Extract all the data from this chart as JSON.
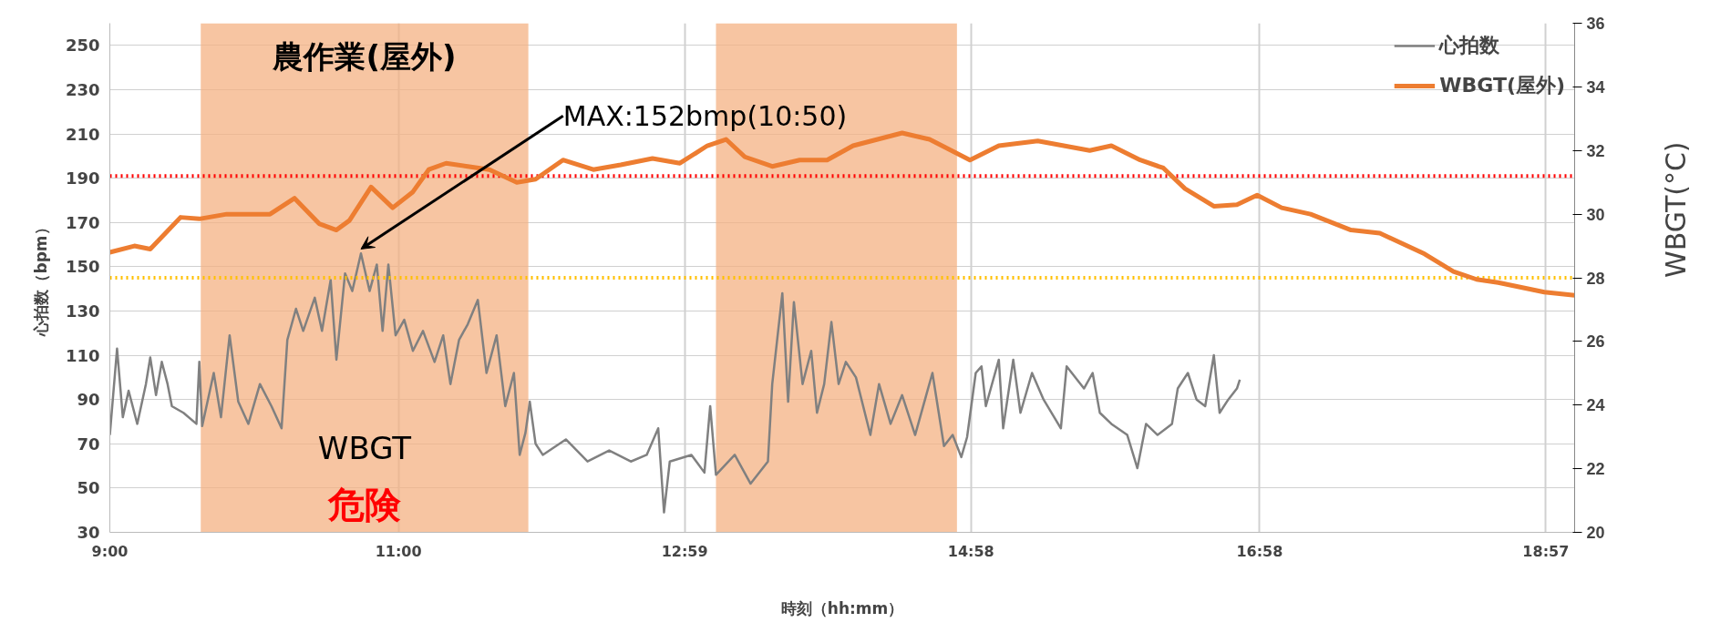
{
  "chart_data": {
    "type": "line",
    "xlabel": "時刻（hh:mm）",
    "ylabel": "心拍数（bpm）",
    "y2label": "WBGT(°C)",
    "xlim": [
      9,
      19.15
    ],
    "xticks": [
      {
        "value": 9,
        "label": "9:00"
      },
      {
        "value": 11,
        "label": "11:00"
      },
      {
        "value": 12.983,
        "label": "12:59"
      },
      {
        "value": 14.967,
        "label": "14:58"
      },
      {
        "value": 16.967,
        "label": "16:58"
      },
      {
        "value": 18.95,
        "label": "18:57"
      }
    ],
    "ylim": [
      30,
      260
    ],
    "yticks": [
      30,
      50,
      70,
      90,
      110,
      130,
      150,
      170,
      190,
      210,
      230,
      250
    ],
    "y2lim": [
      20,
      36
    ],
    "y2ticks": [
      20,
      22,
      24,
      26,
      28,
      30,
      32,
      34,
      36
    ],
    "grid": true,
    "legend": "top right",
    "series": [
      {
        "name": "心拍数",
        "color": "#808080",
        "x": [
          9.0,
          9.05,
          9.09,
          9.13,
          9.19,
          9.25,
          9.28,
          9.32,
          9.36,
          9.4,
          9.43,
          9.51,
          9.6,
          9.62,
          9.64,
          9.72,
          9.77,
          9.83,
          9.89,
          9.96,
          10.04,
          10.12,
          10.19,
          10.23,
          10.29,
          10.34,
          10.42,
          10.47,
          10.53,
          10.57,
          10.63,
          10.68,
          10.74,
          10.8,
          10.85,
          10.89,
          10.93,
          10.98,
          11.04,
          11.1,
          11.17,
          11.25,
          11.31,
          11.36,
          11.42,
          11.48,
          11.55,
          11.61,
          11.68,
          11.74,
          11.8,
          11.84,
          11.88,
          11.91,
          11.95,
          12.0,
          12.16,
          12.31,
          12.46,
          12.61,
          12.72,
          12.8,
          12.84,
          12.88,
          13.03,
          13.12,
          13.16,
          13.2,
          13.33,
          13.44,
          13.56,
          13.59,
          13.66,
          13.7,
          13.74,
          13.8,
          13.86,
          13.9,
          13.95,
          14.0,
          14.05,
          14.1,
          14.17,
          14.27,
          14.33,
          14.41,
          14.49,
          14.58,
          14.7,
          14.78,
          14.84,
          14.9,
          14.94,
          15.0,
          15.04,
          15.07,
          15.16,
          15.19,
          15.26,
          15.31,
          15.39,
          15.47,
          15.59,
          15.63,
          15.75,
          15.81,
          15.86,
          15.94,
          16.05,
          16.12,
          16.18,
          16.26,
          16.36,
          16.4,
          16.47,
          16.53,
          16.59,
          16.65,
          16.69,
          16.75,
          16.81,
          16.83
        ],
        "values": [
          74,
          113,
          82,
          94,
          79,
          97,
          109,
          92,
          107,
          97,
          87,
          84,
          79,
          107,
          78,
          102,
          82,
          119,
          89,
          79,
          97,
          87,
          77,
          117,
          131,
          121,
          136,
          121,
          144,
          108,
          147,
          139,
          156,
          139,
          151,
          121,
          151,
          119,
          126,
          112,
          121,
          107,
          119,
          97,
          117,
          124,
          135,
          102,
          119,
          87,
          102,
          65,
          75,
          89,
          70,
          65,
          72,
          62,
          67,
          62,
          65,
          77,
          39,
          62,
          65,
          57,
          87,
          56,
          65,
          52,
          62,
          97,
          138,
          89,
          134,
          97,
          112,
          84,
          97,
          125,
          97,
          107,
          100,
          74,
          97,
          79,
          92,
          74,
          102,
          69,
          74,
          64,
          73,
          102,
          105,
          87,
          108,
          77,
          108,
          84,
          102,
          90,
          77,
          105,
          95,
          102,
          84,
          79,
          74,
          59,
          79,
          74,
          79,
          95,
          102,
          90,
          87,
          110,
          84,
          90,
          95,
          99
        ]
      },
      {
        "name": "WBGT(屋外)",
        "color": "#ed7d31",
        "axis": "y2",
        "x": [
          9.0,
          9.17,
          9.28,
          9.49,
          9.62,
          9.81,
          10.11,
          10.28,
          10.45,
          10.57,
          10.66,
          10.81,
          10.96,
          11.1,
          11.21,
          11.33,
          11.48,
          11.63,
          11.82,
          11.95,
          12.14,
          12.35,
          12.54,
          12.76,
          12.95,
          13.14,
          13.27,
          13.4,
          13.59,
          13.78,
          13.97,
          14.15,
          14.49,
          14.68,
          14.96,
          15.16,
          15.43,
          15.79,
          15.94,
          16.14,
          16.3,
          16.45,
          16.65,
          16.81,
          16.95,
          17.12,
          17.32,
          17.6,
          17.8,
          18.11,
          18.31,
          18.47,
          18.62,
          18.94,
          19.15
        ],
        "values": [
          28.8,
          29.0,
          28.9,
          29.9,
          29.85,
          30.0,
          30.0,
          30.5,
          29.7,
          29.5,
          29.8,
          30.85,
          30.2,
          30.7,
          31.4,
          31.6,
          31.5,
          31.4,
          31.0,
          31.1,
          31.7,
          31.4,
          31.55,
          31.75,
          31.6,
          32.15,
          32.35,
          31.8,
          31.5,
          31.7,
          31.7,
          32.15,
          32.55,
          32.35,
          31.7,
          32.15,
          32.3,
          32.0,
          32.15,
          31.7,
          31.45,
          30.8,
          30.25,
          30.3,
          30.6,
          30.2,
          30.0,
          29.5,
          29.4,
          28.75,
          28.2,
          27.95,
          27.85,
          27.55,
          27.45
        ]
      }
    ],
    "ref_lines": [
      {
        "axis": "y2",
        "value": 31.2,
        "color": "#ff0000",
        "line_style": "dotted"
      },
      {
        "axis": "y2",
        "value": 28,
        "color": "#ffc000",
        "line_style": "dotted"
      }
    ],
    "bands": [
      {
        "axis": "x",
        "from": 9.63,
        "to": 11.9,
        "label": "農作業(屋外)",
        "color": "#f4b183"
      },
      {
        "axis": "x",
        "from": 13.2,
        "to": 14.87,
        "color": "#f4b183"
      }
    ],
    "annotations": [
      {
        "text": "MAX:152bmp(10:50)",
        "x": 10.74,
        "y": 156
      },
      "WBGT",
      "危険"
    ]
  }
}
